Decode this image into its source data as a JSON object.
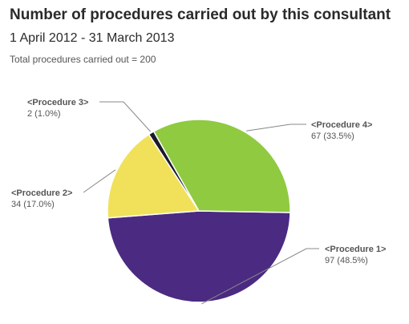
{
  "title": "Number of procedures carried out by this consultant",
  "subtitle": "1 April 2012 - 31 March 2013",
  "total_text": "Total procedures carried out = 200",
  "chart_data": {
    "type": "pie",
    "title": "Number of procedures carried out by this consultant",
    "subtitle": "1 April 2012 - 31 March 2013",
    "total": 200,
    "slices": [
      {
        "label": "<Procedure 1>",
        "value": 97,
        "percent": 48.5,
        "value_text": "97 (48.5%)",
        "color": "#4b2a82"
      },
      {
        "label": "<Procedure 2>",
        "value": 34,
        "percent": 17.0,
        "value_text": "34 (17.0%)",
        "color": "#f1e15a"
      },
      {
        "label": "<Procedure 3>",
        "value": 2,
        "percent": 1.0,
        "value_text": "2 (1.0%)",
        "color": "#1a1a2a"
      },
      {
        "label": "<Procedure 4>",
        "value": 67,
        "percent": 33.5,
        "value_text": "67 (33.5%)",
        "color": "#8fca40"
      }
    ]
  }
}
